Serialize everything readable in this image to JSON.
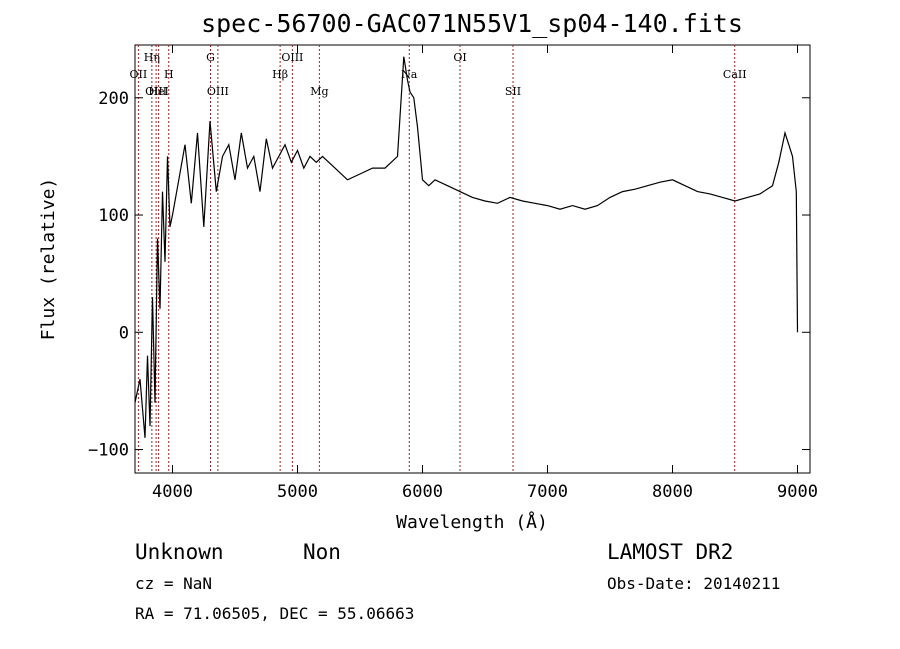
{
  "chart_data": {
    "type": "line",
    "title": "spec-56700-GAC071N55V1_sp04-140.fits",
    "xlabel": "Wavelength (Å)",
    "ylabel": "Flux (relative)",
    "xlim": [
      3700,
      9100
    ],
    "ylim": [
      -120,
      245
    ],
    "x_ticks": [
      4000,
      5000,
      6000,
      7000,
      8000,
      9000
    ],
    "y_ticks": [
      -100,
      0,
      100,
      200
    ],
    "x_tick_labels": [
      "4000",
      "5000",
      "6000",
      "7000",
      "8000",
      "9000"
    ],
    "y_tick_labels": [
      "−100",
      "0",
      "100",
      "200"
    ],
    "grid": false,
    "series": [
      {
        "x": [
          3700,
          3740,
          3780,
          3800,
          3820,
          3840,
          3860,
          3880,
          3900,
          3920,
          3940,
          3960,
          3980,
          4000,
          4050,
          4100,
          4150,
          4200,
          4250,
          4300,
          4350,
          4400,
          4450,
          4500,
          4550,
          4600,
          4650,
          4700,
          4750,
          4800,
          4850,
          4900,
          4950,
          5000,
          5050,
          5100,
          5150,
          5200,
          5300,
          5400,
          5500,
          5600,
          5700,
          5800,
          5850,
          5880,
          5900,
          5930,
          5960,
          6000,
          6050,
          6100,
          6200,
          6300,
          6400,
          6500,
          6600,
          6700,
          6800,
          6900,
          7000,
          7100,
          7200,
          7300,
          7400,
          7500,
          7600,
          7700,
          7800,
          7900,
          8000,
          8100,
          8200,
          8300,
          8400,
          8500,
          8600,
          8700,
          8800,
          8850,
          8900,
          8930,
          8960,
          8990,
          9000
        ],
        "y": [
          -60,
          -40,
          -90,
          -20,
          -80,
          30,
          -60,
          80,
          20,
          120,
          60,
          150,
          90,
          100,
          130,
          160,
          110,
          170,
          90,
          180,
          120,
          150,
          160,
          130,
          170,
          140,
          150,
          120,
          165,
          140,
          150,
          160,
          145,
          155,
          140,
          150,
          145,
          150,
          140,
          130,
          135,
          140,
          140,
          150,
          235,
          215,
          205,
          200,
          175,
          130,
          125,
          130,
          125,
          120,
          115,
          112,
          110,
          115,
          112,
          110,
          108,
          105,
          108,
          105,
          108,
          115,
          120,
          122,
          125,
          128,
          130,
          125,
          120,
          118,
          115,
          112,
          115,
          118,
          125,
          145,
          170,
          160,
          150,
          120,
          0
        ]
      }
    ],
    "spectral_lines": [
      {
        "label": "OII",
        "x": 3727,
        "row": 2
      },
      {
        "label": "Hη",
        "x": 3835,
        "row": 1
      },
      {
        "label": "OIII",
        "x": 3869,
        "row": 3
      },
      {
        "label": "HeI",
        "x": 3889,
        "row": 3
      },
      {
        "label": "H",
        "x": 3970,
        "row": 2
      },
      {
        "label": "G",
        "x": 4304,
        "row": 1
      },
      {
        "label": "OIII",
        "x": 4363,
        "row": 3
      },
      {
        "label": "Hβ",
        "x": 4861,
        "row": 2
      },
      {
        "label": "OIII",
        "x": 4959,
        "row": 1
      },
      {
        "label": "Mg",
        "x": 5175,
        "row": 3
      },
      {
        "label": "Na",
        "x": 5894,
        "row": 2
      },
      {
        "label": "OI",
        "x": 6300,
        "row": 1
      },
      {
        "label": "SII",
        "x": 6724,
        "row": 3
      },
      {
        "label": "CaII",
        "x": 8498,
        "row": 2
      }
    ]
  },
  "footer": {
    "object_class": "Unknown",
    "subclass": "Non",
    "survey": "LAMOST DR2",
    "cz": "cz = NaN",
    "obs_date": "Obs-Date: 20140211",
    "coords": "RA =  71.06505, DEC =  55.06663"
  }
}
